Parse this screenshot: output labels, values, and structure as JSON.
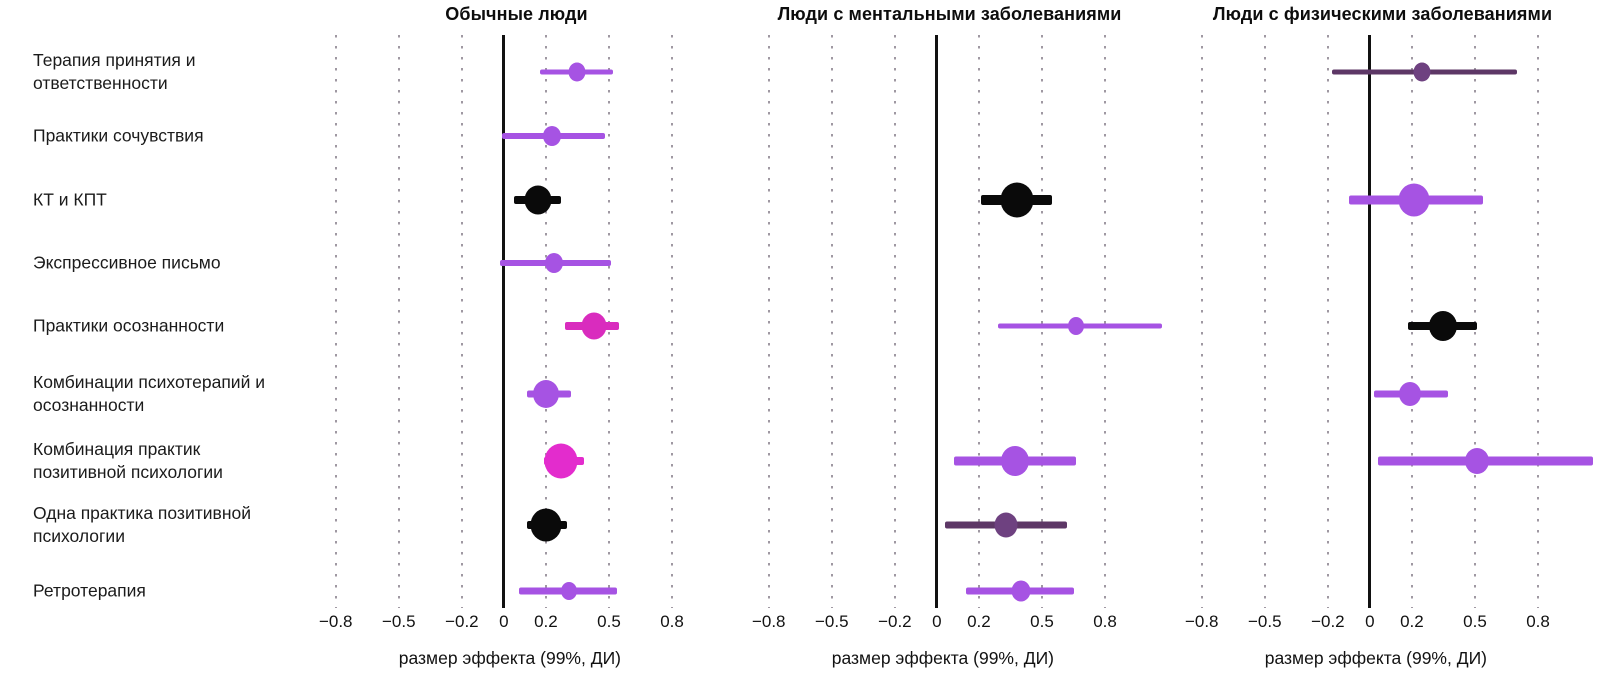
{
  "chart_data": {
    "type": "forest",
    "description": "Forest plot of effect sizes (99% CI) for psychotherapy practices across three populations",
    "categories": [
      "Терапия принятия и ответственности",
      "Практики сочувствия",
      "КТ и КПТ",
      "Экспрессивное письмо",
      "Практики осознанности",
      "Комбинации психотерапий и осознанности",
      "Комбинация практик позитивной психологии",
      "Одна практика позитивной психологии",
      "Ретротерапия"
    ],
    "xlabel": "размер эффекта (99%, ДИ)",
    "xlim": [
      -0.97,
      1.09
    ],
    "x_ticks": [
      -0.8,
      -0.5,
      -0.2,
      0,
      0.2,
      0.5,
      0.8
    ],
    "x_tick_labels": [
      "−0.8",
      "−0.5",
      "−0.2",
      "0",
      "0.2",
      "0.5",
      "0.8"
    ],
    "grid": "dotted-vertical",
    "colors": {
      "purple": "#a653e3",
      "magenta": "#d92cbe",
      "pink": "#e32ccd",
      "plum": "#6e4180",
      "plum_line": "#5d3766",
      "black": "#0a0a0a",
      "grid": "#9a929e"
    },
    "panels": [
      {
        "title": "Обычные люди",
        "points": [
          {
            "row": 0,
            "est": 0.35,
            "lo": 0.17,
            "hi": 0.52,
            "color": "purple",
            "dot": 17,
            "line": 5
          },
          {
            "row": 1,
            "est": 0.23,
            "lo": -0.01,
            "hi": 0.48,
            "color": "purple",
            "dot": 18,
            "line": 6
          },
          {
            "row": 2,
            "est": 0.16,
            "lo": 0.05,
            "hi": 0.27,
            "color": "black",
            "dot": 27,
            "line": 8
          },
          {
            "row": 3,
            "est": 0.24,
            "lo": -0.02,
            "hi": 0.51,
            "color": "purple",
            "dot": 18,
            "line": 6
          },
          {
            "row": 4,
            "est": 0.43,
            "lo": 0.29,
            "hi": 0.55,
            "color": "magenta",
            "dot": 25,
            "line": 8
          },
          {
            "row": 5,
            "est": 0.2,
            "lo": 0.11,
            "hi": 0.32,
            "color": "purple",
            "dot": 26,
            "line": 7
          },
          {
            "row": 6,
            "est": 0.27,
            "lo": 0.19,
            "hi": 0.38,
            "color": "pink",
            "dot": 33,
            "line": 8
          },
          {
            "row": 7,
            "est": 0.2,
            "lo": 0.11,
            "hi": 0.3,
            "color": "black",
            "dot": 31,
            "line": 8
          },
          {
            "row": 8,
            "est": 0.31,
            "lo": 0.07,
            "hi": 0.54,
            "color": "purple",
            "dot": 16,
            "line": 7
          }
        ]
      },
      {
        "title": "Люди с ментальными заболеваниями",
        "points": [
          {
            "row": 2,
            "est": 0.38,
            "lo": 0.21,
            "hi": 0.55,
            "color": "black",
            "dot": 33,
            "line": 10
          },
          {
            "row": 4,
            "est": 0.66,
            "lo": 0.29,
            "hi": 1.07,
            "color": "purple",
            "dot": 16,
            "line": 5
          },
          {
            "row": 6,
            "est": 0.37,
            "lo": 0.08,
            "hi": 0.66,
            "color": "purple",
            "dot": 28,
            "line": 9
          },
          {
            "row": 7,
            "est": 0.33,
            "lo": 0.04,
            "hi": 0.62,
            "color": "plum",
            "dot": 23,
            "line": 7
          },
          {
            "row": 8,
            "est": 0.4,
            "lo": 0.14,
            "hi": 0.65,
            "color": "purple",
            "dot": 19,
            "line": 7
          }
        ]
      },
      {
        "title": "Люди с физическими заболеваниями",
        "points": [
          {
            "row": 0,
            "est": 0.25,
            "lo": -0.18,
            "hi": 0.7,
            "color": "plum",
            "dot": 17,
            "line": 5
          },
          {
            "row": 2,
            "est": 0.21,
            "lo": -0.1,
            "hi": 0.54,
            "color": "purple",
            "dot": 31,
            "line": 9
          },
          {
            "row": 4,
            "est": 0.35,
            "lo": 0.18,
            "hi": 0.51,
            "color": "black",
            "dot": 28,
            "line": 8
          },
          {
            "row": 5,
            "est": 0.19,
            "lo": 0.02,
            "hi": 0.37,
            "color": "purple",
            "dot": 22,
            "line": 7
          },
          {
            "row": 6,
            "est": 0.51,
            "lo": 0.04,
            "hi": 1.06,
            "color": "purple",
            "dot": 24,
            "line": 9
          }
        ]
      }
    ]
  }
}
